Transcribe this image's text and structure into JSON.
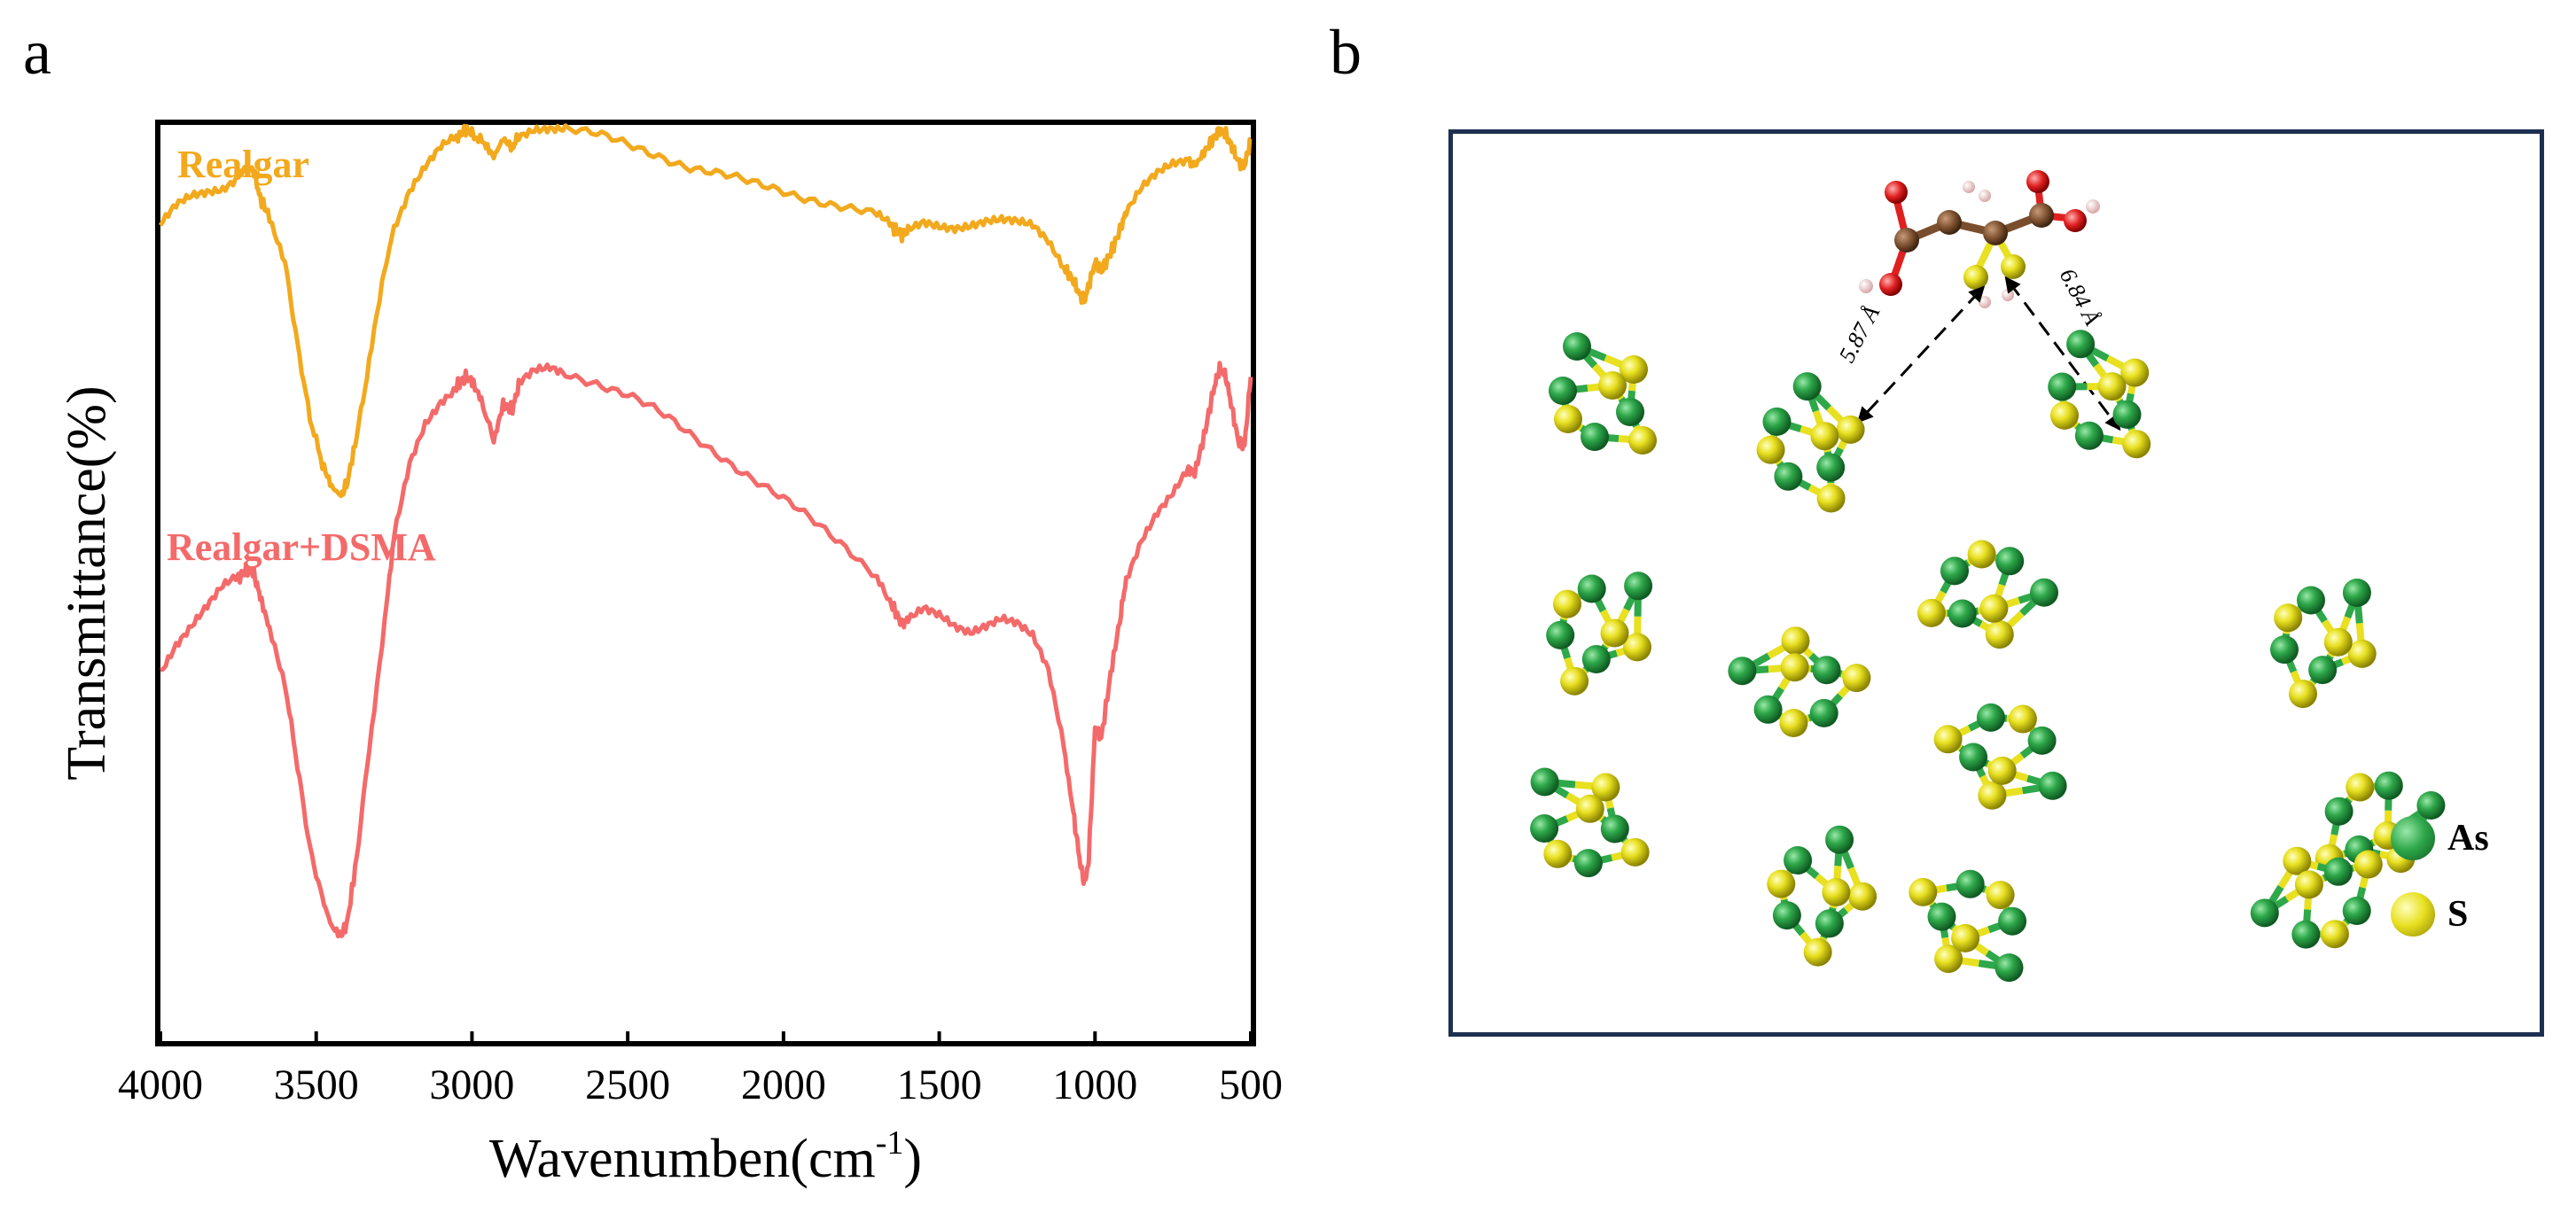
{
  "panel_labels": {
    "a": "a",
    "b": "b"
  },
  "chart_data": {
    "type": "line",
    "title": "",
    "xlabel": "Wavenumben(cm",
    "xlabel_sup": "-1",
    "xlabel_close": ")",
    "ylabel": "Transmittance(%)",
    "xlim": [
      4000,
      500
    ],
    "ylim": [
      0,
      10
    ],
    "x_reversed": true,
    "xticks": [
      4000,
      3500,
      3000,
      2500,
      2000,
      1500,
      1000,
      500
    ],
    "xtick_labels": [
      "4000",
      "3500",
      "3000",
      "2500",
      "2000",
      "1500",
      "1000",
      "500"
    ],
    "y_ticks_shown": false,
    "grid": false,
    "legend": "inline labels top-left",
    "series": [
      {
        "name": "Realgar",
        "color": "#f2a91d",
        "points": [
          [
            4000,
            8.9
          ],
          [
            3950,
            9.1
          ],
          [
            3900,
            9.2
          ],
          [
            3850,
            9.25
          ],
          [
            3800,
            9.3
          ],
          [
            3750,
            9.45
          ],
          [
            3720,
            9.55
          ],
          [
            3700,
            9.5
          ],
          [
            3680,
            9.2
          ],
          [
            3650,
            9.0
          ],
          [
            3600,
            8.5
          ],
          [
            3560,
            7.6
          ],
          [
            3520,
            6.8
          ],
          [
            3480,
            6.3
          ],
          [
            3450,
            6.05
          ],
          [
            3420,
            5.95
          ],
          [
            3400,
            6.1
          ],
          [
            3370,
            6.6
          ],
          [
            3330,
            7.4
          ],
          [
            3280,
            8.4
          ],
          [
            3250,
            8.9
          ],
          [
            3200,
            9.3
          ],
          [
            3150,
            9.55
          ],
          [
            3100,
            9.75
          ],
          [
            3050,
            9.85
          ],
          [
            3020,
            9.95
          ],
          [
            3000,
            9.9
          ],
          [
            2960,
            9.8
          ],
          [
            2930,
            9.65
          ],
          [
            2900,
            9.85
          ],
          [
            2870,
            9.75
          ],
          [
            2850,
            9.9
          ],
          [
            2800,
            9.98
          ],
          [
            2750,
            9.98
          ],
          [
            2700,
            9.96
          ],
          [
            2600,
            9.88
          ],
          [
            2500,
            9.78
          ],
          [
            2400,
            9.68
          ],
          [
            2300,
            9.55
          ],
          [
            2200,
            9.45
          ],
          [
            2100,
            9.35
          ],
          [
            2000,
            9.28
          ],
          [
            1900,
            9.2
          ],
          [
            1800,
            9.1
          ],
          [
            1700,
            9.0
          ],
          [
            1650,
            8.88
          ],
          [
            1620,
            8.8
          ],
          [
            1600,
            8.85
          ],
          [
            1550,
            8.95
          ],
          [
            1500,
            8.92
          ],
          [
            1450,
            8.9
          ],
          [
            1400,
            8.92
          ],
          [
            1350,
            8.95
          ],
          [
            1300,
            8.95
          ],
          [
            1250,
            8.92
          ],
          [
            1200,
            8.88
          ],
          [
            1150,
            8.72
          ],
          [
            1100,
            8.45
          ],
          [
            1070,
            8.3
          ],
          [
            1050,
            8.15
          ],
          [
            1040,
            8.1
          ],
          [
            1030,
            8.12
          ],
          [
            1020,
            8.25
          ],
          [
            1000,
            8.5
          ],
          [
            980,
            8.4
          ],
          [
            950,
            8.6
          ],
          [
            920,
            8.85
          ],
          [
            900,
            9.05
          ],
          [
            850,
            9.3
          ],
          [
            800,
            9.45
          ],
          [
            750,
            9.55
          ],
          [
            700,
            9.6
          ],
          [
            680,
            9.55
          ],
          [
            650,
            9.7
          ],
          [
            620,
            9.85
          ],
          [
            600,
            9.95
          ],
          [
            580,
            9.9
          ],
          [
            560,
            9.75
          ],
          [
            540,
            9.6
          ],
          [
            520,
            9.55
          ],
          [
            500,
            9.85
          ]
        ]
      },
      {
        "name": "Realgar+DSMA",
        "color": "#f46a6a",
        "points": [
          [
            4000,
            4.05
          ],
          [
            3950,
            4.35
          ],
          [
            3900,
            4.55
          ],
          [
            3850,
            4.75
          ],
          [
            3800,
            4.95
          ],
          [
            3750,
            5.05
          ],
          [
            3720,
            5.15
          ],
          [
            3700,
            5.1
          ],
          [
            3680,
            4.85
          ],
          [
            3650,
            4.5
          ],
          [
            3600,
            3.9
          ],
          [
            3560,
            3.0
          ],
          [
            3520,
            2.1
          ],
          [
            3480,
            1.55
          ],
          [
            3450,
            1.25
          ],
          [
            3420,
            1.15
          ],
          [
            3400,
            1.3
          ],
          [
            3370,
            2.0
          ],
          [
            3330,
            3.2
          ],
          [
            3280,
            4.6
          ],
          [
            3250,
            5.5
          ],
          [
            3200,
            6.3
          ],
          [
            3150,
            6.75
          ],
          [
            3100,
            7.0
          ],
          [
            3050,
            7.15
          ],
          [
            3020,
            7.25
          ],
          [
            3000,
            7.2
          ],
          [
            2970,
            7.0
          ],
          [
            2930,
            6.55
          ],
          [
            2900,
            6.95
          ],
          [
            2870,
            6.9
          ],
          [
            2850,
            7.15
          ],
          [
            2800,
            7.3
          ],
          [
            2750,
            7.35
          ],
          [
            2700,
            7.3
          ],
          [
            2600,
            7.2
          ],
          [
            2500,
            7.05
          ],
          [
            2400,
            6.85
          ],
          [
            2300,
            6.62
          ],
          [
            2200,
            6.4
          ],
          [
            2100,
            6.15
          ],
          [
            2000,
            5.9
          ],
          [
            1900,
            5.65
          ],
          [
            1800,
            5.4
          ],
          [
            1700,
            5.1
          ],
          [
            1650,
            4.75
          ],
          [
            1620,
            4.55
          ],
          [
            1600,
            4.6
          ],
          [
            1550,
            4.7
          ],
          [
            1500,
            4.62
          ],
          [
            1450,
            4.5
          ],
          [
            1400,
            4.45
          ],
          [
            1350,
            4.55
          ],
          [
            1300,
            4.65
          ],
          [
            1250,
            4.6
          ],
          [
            1200,
            4.45
          ],
          [
            1150,
            4.05
          ],
          [
            1100,
            3.2
          ],
          [
            1070,
            2.5
          ],
          [
            1050,
            2.0
          ],
          [
            1040,
            1.8
          ],
          [
            1030,
            1.75
          ],
          [
            1020,
            2.0
          ],
          [
            1000,
            3.4
          ],
          [
            980,
            3.3
          ],
          [
            950,
            4.0
          ],
          [
            920,
            4.6
          ],
          [
            900,
            5.05
          ],
          [
            850,
            5.5
          ],
          [
            800,
            5.8
          ],
          [
            750,
            6.0
          ],
          [
            700,
            6.25
          ],
          [
            680,
            6.2
          ],
          [
            650,
            6.6
          ],
          [
            620,
            7.1
          ],
          [
            600,
            7.35
          ],
          [
            580,
            7.25
          ],
          [
            560,
            6.9
          ],
          [
            540,
            6.55
          ],
          [
            520,
            6.5
          ],
          [
            500,
            7.25
          ]
        ]
      }
    ]
  },
  "structure": {
    "legend": [
      {
        "label": "As",
        "color": "#2ea84a"
      },
      {
        "label": "S",
        "color": "#e8e020"
      }
    ],
    "distances": [
      {
        "label": "5.87 Å"
      },
      {
        "label": "6.84 Å"
      }
    ],
    "colors": {
      "frame": "#1d3050",
      "carbon": "#7a4e2d",
      "oxygen": "#e02020",
      "hydrogen": "#f0c8c8",
      "as": "#2ea84a",
      "s": "#e8e020"
    }
  }
}
